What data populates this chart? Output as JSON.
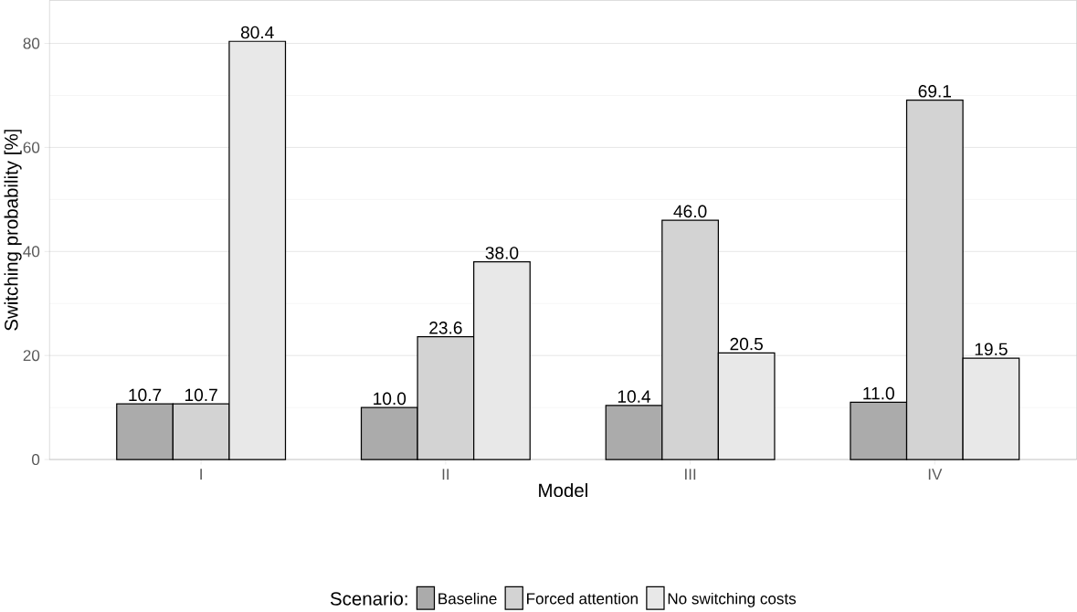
{
  "chart_data": {
    "type": "bar",
    "xlabel": "Model",
    "ylabel": "Switching probability [%]",
    "legend_title": "Scenario:",
    "categories": [
      "I",
      "II",
      "III",
      "IV"
    ],
    "series": [
      {
        "name": "Baseline",
        "color": "#ababab",
        "values": [
          10.7,
          10.0,
          10.4,
          11.0
        ],
        "value_labels": [
          "10.7",
          "10.0",
          "10.4",
          "11.0"
        ]
      },
      {
        "name": "Forced attention",
        "color": "#d3d3d3",
        "values": [
          10.7,
          23.6,
          46.0,
          69.1
        ],
        "value_labels": [
          "10.7",
          "23.6",
          "46.0",
          "69.1"
        ]
      },
      {
        "name": "No switching costs",
        "color": "#e8e8e8",
        "values": [
          80.4,
          38.0,
          20.5,
          19.5
        ],
        "value_labels": [
          "80.4",
          "38.0",
          "20.5",
          "19.5"
        ]
      }
    ],
    "ylim": [
      0,
      88.3
    ],
    "yticks": [
      0,
      20,
      40,
      60,
      80
    ],
    "grid": "y",
    "legend": "bottom"
  }
}
